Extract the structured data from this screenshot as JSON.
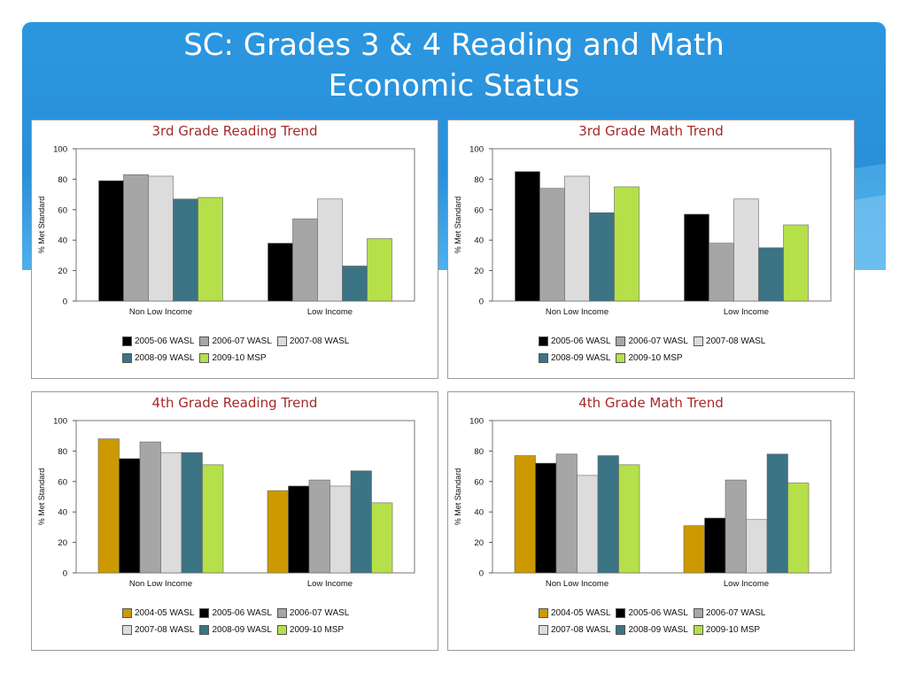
{
  "slide": {
    "title_line1": "SC:  Grades 3 & 4 Reading and Math",
    "title_line2": "Economic Status"
  },
  "colors": {
    "2004-05 WASL": "#cc9900",
    "2005-06 WASL": "#000000",
    "2006-07 WASL": "#a6a6a6",
    "2007-08 WASL": "#dcdcdc",
    "2008-09 WASL": "#3b7484",
    "2009-10 MSP": "#b5e04a"
  },
  "chart_data": [
    {
      "type": "bar",
      "title": "3rd Grade Reading Trend",
      "ylabel": "% Met Standard",
      "xlabel": "",
      "ylim": [
        0,
        100
      ],
      "yticks": [
        "0",
        "20",
        "40",
        "60",
        "80",
        "100"
      ],
      "categories": [
        "Non Low Income",
        "Low Income"
      ],
      "series": [
        {
          "name": "2005-06 WASL",
          "values": [
            79,
            38
          ]
        },
        {
          "name": "2006-07 WASL",
          "values": [
            83,
            54
          ]
        },
        {
          "name": "2007-08 WASL",
          "values": [
            82,
            67
          ]
        },
        {
          "name": "2008-09 WASL",
          "values": [
            67,
            23
          ]
        },
        {
          "name": "2009-10 MSP",
          "values": [
            68,
            41
          ]
        }
      ],
      "legend_rows": [
        [
          "2005-06 WASL",
          "2006-07 WASL",
          "2007-08 WASL"
        ],
        [
          "2008-09 WASL",
          "2009-10 MSP"
        ]
      ]
    },
    {
      "type": "bar",
      "title": "3rd Grade Math Trend",
      "ylabel": "% Met Standard",
      "xlabel": "",
      "ylim": [
        0,
        100
      ],
      "yticks": [
        "0",
        "20",
        "40",
        "60",
        "80",
        "100"
      ],
      "categories": [
        "Non Low Income",
        "Low Income"
      ],
      "series": [
        {
          "name": "2005-06 WASL",
          "values": [
            85,
            57
          ]
        },
        {
          "name": "2006-07 WASL",
          "values": [
            74,
            38
          ]
        },
        {
          "name": "2007-08 WASL",
          "values": [
            82,
            67
          ]
        },
        {
          "name": "2008-09 WASL",
          "values": [
            58,
            35
          ]
        },
        {
          "name": "2009-10 MSP",
          "values": [
            75,
            50
          ]
        }
      ],
      "legend_rows": [
        [
          "2005-06 WASL",
          "2006-07 WASL",
          "2007-08 WASL"
        ],
        [
          "2008-09 WASL",
          "2009-10 MSP"
        ]
      ]
    },
    {
      "type": "bar",
      "title": "4th Grade Reading Trend",
      "ylabel": "% Met Standard",
      "xlabel": "",
      "ylim": [
        0,
        100
      ],
      "yticks": [
        "0",
        "20",
        "40",
        "60",
        "80",
        "100"
      ],
      "categories": [
        "Non Low Income",
        "Low Income"
      ],
      "series": [
        {
          "name": "2004-05 WASL",
          "values": [
            88,
            54
          ]
        },
        {
          "name": "2005-06 WASL",
          "values": [
            75,
            57
          ]
        },
        {
          "name": "2006-07 WASL",
          "values": [
            86,
            61
          ]
        },
        {
          "name": "2007-08 WASL",
          "values": [
            79,
            57
          ]
        },
        {
          "name": "2008-09 WASL",
          "values": [
            79,
            67
          ]
        },
        {
          "name": "2009-10 MSP",
          "values": [
            71,
            46
          ]
        }
      ],
      "legend_rows": [
        [
          "2004-05 WASL",
          "2005-06 WASL",
          "2006-07 WASL"
        ],
        [
          "2007-08 WASL",
          "2008-09 WASL",
          "2009-10 MSP"
        ]
      ]
    },
    {
      "type": "bar",
      "title": "4th Grade Math Trend",
      "ylabel": "% Met Standard",
      "xlabel": "",
      "ylim": [
        0,
        100
      ],
      "yticks": [
        "0",
        "20",
        "40",
        "60",
        "80",
        "100"
      ],
      "categories": [
        "Non Low Income",
        "Low Income"
      ],
      "series": [
        {
          "name": "2004-05 WASL",
          "values": [
            77,
            31
          ]
        },
        {
          "name": "2005-06 WASL",
          "values": [
            72,
            36
          ]
        },
        {
          "name": "2006-07 WASL",
          "values": [
            78,
            61
          ]
        },
        {
          "name": "2007-08 WASL",
          "values": [
            64,
            35
          ]
        },
        {
          "name": "2008-09 WASL",
          "values": [
            77,
            78
          ]
        },
        {
          "name": "2009-10 MSP",
          "values": [
            71,
            59
          ]
        }
      ],
      "legend_rows": [
        [
          "2004-05 WASL",
          "2005-06 WASL",
          "2006-07 WASL"
        ],
        [
          "2007-08 WASL",
          "2008-09 WASL",
          "2009-10 MSP"
        ]
      ]
    }
  ]
}
